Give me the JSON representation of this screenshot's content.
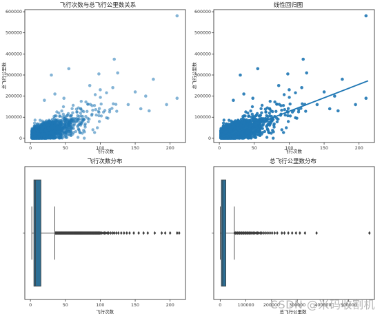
{
  "colors": {
    "point": "#1f77b4",
    "box_fill": "#2c6f96",
    "text": "#222222"
  },
  "chart_data": [
    {
      "type": "scatter",
      "title": "飞行次数与总飞行公里数关系",
      "xlabel": "飞行次数",
      "ylabel": "总飞行公里数",
      "xlim": [
        -8,
        222
      ],
      "ylim": [
        -20000,
        610000
      ],
      "xticks": [
        0,
        50,
        100,
        150,
        200
      ],
      "yticks": [
        0,
        100000,
        200000,
        300000,
        400000,
        500000,
        600000
      ],
      "alpha": 0.55,
      "points": [
        [
          210,
          580717
        ],
        [
          176,
          280000
        ],
        [
          120,
          375000
        ],
        [
          210,
          190000
        ],
        [
          195,
          160000
        ],
        [
          150,
          220000
        ],
        [
          118,
          240000
        ],
        [
          125,
          310000
        ],
        [
          165,
          200000
        ],
        [
          55,
          330000
        ],
        [
          98,
          305000
        ],
        [
          30,
          300000
        ],
        [
          170,
          130000
        ],
        [
          48,
          190000
        ],
        [
          35,
          210000
        ],
        [
          140,
          160000
        ],
        [
          158,
          140000
        ],
        [
          100,
          230000
        ],
        [
          85,
          250000
        ],
        [
          20,
          180000
        ]
      ],
      "cloud": {
        "n": 2600,
        "x_scale": 18,
        "x_max": 200,
        "y_slope": 1200,
        "y_noise": 18000,
        "seed": 7
      }
    },
    {
      "type": "scatter",
      "title": "线性回归图",
      "xlabel": "飞行次数",
      "ylabel": "总飞行公里数",
      "xlim": [
        -8,
        222
      ],
      "ylim": [
        -20000,
        610000
      ],
      "xticks": [
        0,
        50,
        100,
        150,
        200
      ],
      "yticks": [
        0,
        100000,
        200000,
        300000,
        400000,
        500000,
        600000
      ],
      "alpha": 0.9,
      "regression": {
        "slope": 1280,
        "intercept": 0,
        "x_range": [
          0,
          213
        ]
      },
      "points": [
        [
          210,
          580717
        ],
        [
          176,
          280000
        ],
        [
          120,
          375000
        ],
        [
          210,
          190000
        ],
        [
          195,
          160000
        ],
        [
          150,
          220000
        ],
        [
          118,
          240000
        ],
        [
          125,
          310000
        ],
        [
          165,
          200000
        ],
        [
          55,
          330000
        ],
        [
          98,
          305000
        ],
        [
          30,
          300000
        ],
        [
          170,
          130000
        ],
        [
          48,
          190000
        ],
        [
          35,
          210000
        ],
        [
          140,
          160000
        ],
        [
          158,
          140000
        ],
        [
          100,
          230000
        ],
        [
          85,
          250000
        ],
        [
          20,
          180000
        ]
      ],
      "cloud": {
        "n": 2600,
        "x_scale": 18,
        "x_max": 200,
        "y_slope": 1200,
        "y_noise": 18000,
        "seed": 7
      }
    },
    {
      "type": "box",
      "title": "飞行次数分布",
      "xlabel": "飞行次数",
      "xlim": [
        -8,
        222
      ],
      "xticks": [
        0,
        50,
        100,
        150,
        200
      ],
      "box": {
        "min": 2,
        "q1": 5,
        "median": 7,
        "q3": 15,
        "whisker_high": 35
      },
      "outliers": [
        36,
        37,
        38,
        39,
        40,
        41,
        42,
        43,
        44,
        45,
        46,
        47,
        48,
        49,
        50,
        51,
        52,
        53,
        54,
        55,
        56,
        57,
        58,
        59,
        60,
        61,
        62,
        63,
        64,
        65,
        66,
        67,
        68,
        69,
        70,
        71,
        72,
        73,
        74,
        75,
        76,
        77,
        78,
        79,
        80,
        81,
        82,
        83,
        84,
        85,
        86,
        87,
        88,
        89,
        90,
        91,
        92,
        93,
        94,
        95,
        96,
        97,
        98,
        99,
        100,
        102,
        104,
        106,
        108,
        110,
        112,
        115,
        118,
        120,
        123,
        126,
        130,
        134,
        138,
        142,
        148,
        155,
        162,
        168,
        178,
        188,
        193,
        200,
        210,
        213
      ]
    },
    {
      "type": "box",
      "title": "总飞行公里数分布",
      "xlabel": "总飞行公里数",
      "xlim": [
        -25000,
        600000
      ],
      "xticks": [
        0,
        100000,
        200000,
        300000,
        400000,
        500000
      ],
      "box": {
        "min": 368,
        "q1": 4700,
        "median": 9900,
        "q3": 22000,
        "whisker_high": 55000
      },
      "outliers": [
        56000,
        60000,
        64000,
        68000,
        72000,
        76000,
        80000,
        84000,
        88000,
        92000,
        96000,
        100000,
        104000,
        108000,
        112000,
        116000,
        120000,
        125000,
        130000,
        135000,
        140000,
        145000,
        150000,
        156000,
        162000,
        170000,
        178000,
        186000,
        194000,
        202000,
        212000,
        222000,
        240000,
        250000,
        265000,
        280000,
        295000,
        310000,
        330000,
        375000,
        580717
      ]
    }
  ],
  "watermark": "CSDN @米码收割机"
}
